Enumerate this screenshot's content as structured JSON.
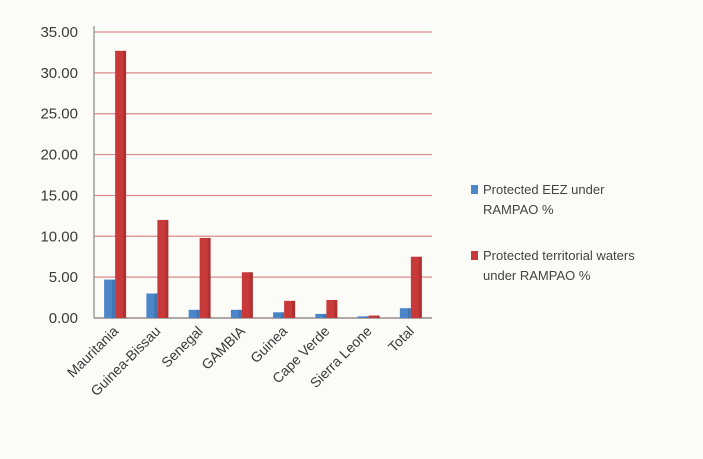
{
  "chart_data": {
    "type": "bar",
    "categories": [
      "Mauritania",
      "Guinea-Bissau",
      "Senegal",
      "GAMBIA",
      "Guinea",
      "Cape Verde",
      "Sierra Leone",
      "Total"
    ],
    "series": [
      {
        "name": "Protected EEZ under RAMPAO %",
        "color": "#4a86c8",
        "values": [
          4.7,
          3.0,
          1.0,
          1.0,
          0.7,
          0.5,
          0.2,
          1.2
        ]
      },
      {
        "name": "Protected territorial waters under RAMPAO %",
        "color": "#c8393a",
        "values": [
          32.7,
          12.0,
          9.8,
          5.6,
          2.1,
          2.2,
          0.3,
          7.5
        ]
      }
    ],
    "ylim": [
      0,
      35
    ],
    "yticks": [
      "0.00",
      "5.00",
      "10.00",
      "15.00",
      "20.00",
      "25.00",
      "30.00",
      "35.00"
    ],
    "grid": true,
    "legend_position": "right",
    "title": "",
    "xlabel": "",
    "ylabel": ""
  }
}
